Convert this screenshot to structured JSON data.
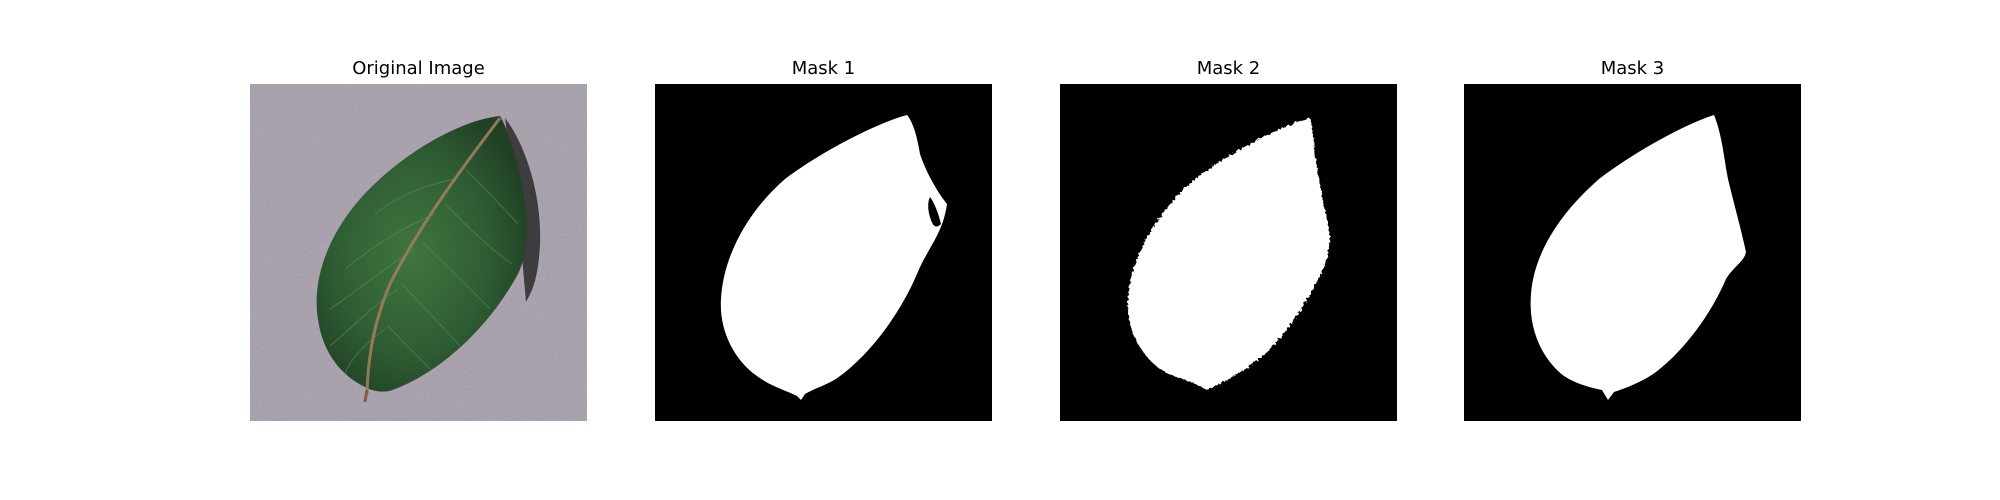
{
  "panels": [
    {
      "title": "Original Image",
      "kind": "photo"
    },
    {
      "title": "Mask 1",
      "kind": "mask"
    },
    {
      "title": "Mask 2",
      "kind": "mask"
    },
    {
      "title": "Mask 3",
      "kind": "mask"
    }
  ],
  "colors": {
    "background": "#ffffff",
    "mask_background": "#000000",
    "mask_foreground": "#ffffff",
    "photo_background": "#b4adb9",
    "leaf_dark": "#264d2a",
    "leaf_mid": "#3a6b3a",
    "leaf_midrib": "#a07d5e",
    "leaf_shadow": "#2a2a2a"
  }
}
